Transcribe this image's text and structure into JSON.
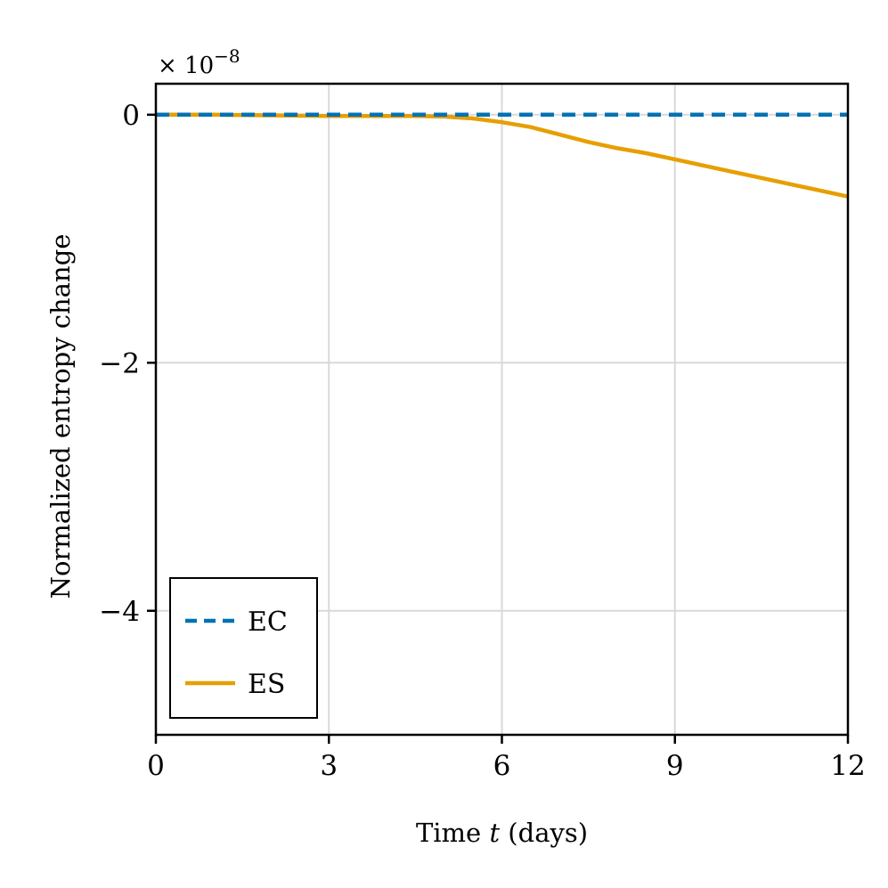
{
  "chart_data": {
    "type": "line",
    "title": "",
    "xlabel_prefix": "Time ",
    "xlabel_var": "t",
    "xlabel_suffix": " (days)",
    "ylabel": "Normalized entropy change",
    "y_multiplier_base": "× 10",
    "y_multiplier_exp": "−8",
    "xlim": [
      0,
      12
    ],
    "ylim": [
      -5.0,
      0.25
    ],
    "xticks": [
      0,
      3,
      6,
      9,
      12
    ],
    "xtick_labels": [
      "0",
      "3",
      "6",
      "9",
      "12"
    ],
    "yticks": [
      0,
      -2,
      -4
    ],
    "ytick_labels": [
      "0",
      "−2",
      "−4"
    ],
    "grid": true,
    "legend_position": "bottom-left",
    "series": [
      {
        "name": "EC",
        "style": "dashed",
        "color": "#0072B2",
        "x": [
          0,
          12
        ],
        "y": [
          0,
          0
        ]
      },
      {
        "name": "ES",
        "style": "solid",
        "color": "#E69F00",
        "x": [
          0,
          1,
          2,
          3,
          4,
          4.5,
          5,
          5.5,
          6,
          6.5,
          7,
          7.5,
          8,
          8.5,
          9,
          9.5,
          10,
          10.5,
          11,
          11.5,
          12
        ],
        "y": [
          0,
          0,
          -0.005,
          -0.01,
          -0.01,
          -0.01,
          -0.015,
          -0.03,
          -0.06,
          -0.1,
          -0.16,
          -0.22,
          -0.27,
          -0.31,
          -0.36,
          -0.41,
          -0.46,
          -0.51,
          -0.56,
          -0.61,
          -0.66
        ]
      }
    ]
  }
}
